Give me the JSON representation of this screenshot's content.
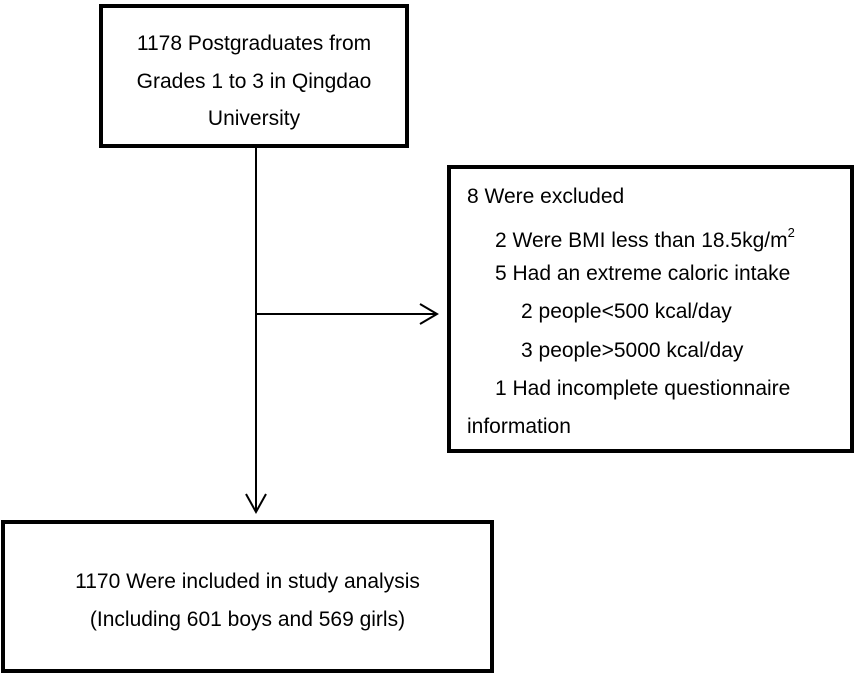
{
  "nodes": [
    {
      "lines": [
        "1178 Postgraduates from",
        "Grades 1 to 3 in Qingdao",
        "University"
      ]
    },
    {
      "lines": [
        "8 Were excluded",
        "2 Were BMI less than 18.5kg/m",
        "5 Had an extreme caloric intake",
        "2 people<500 kcal/day",
        "3 people>5000 kcal/day",
        "1 Had incomplete questionnaire",
        "information"
      ],
      "superscript": "2"
    },
    {
      "lines": [
        "1170 Were included in study analysis",
        "(Including 601 boys and 569 girls)"
      ]
    }
  ]
}
